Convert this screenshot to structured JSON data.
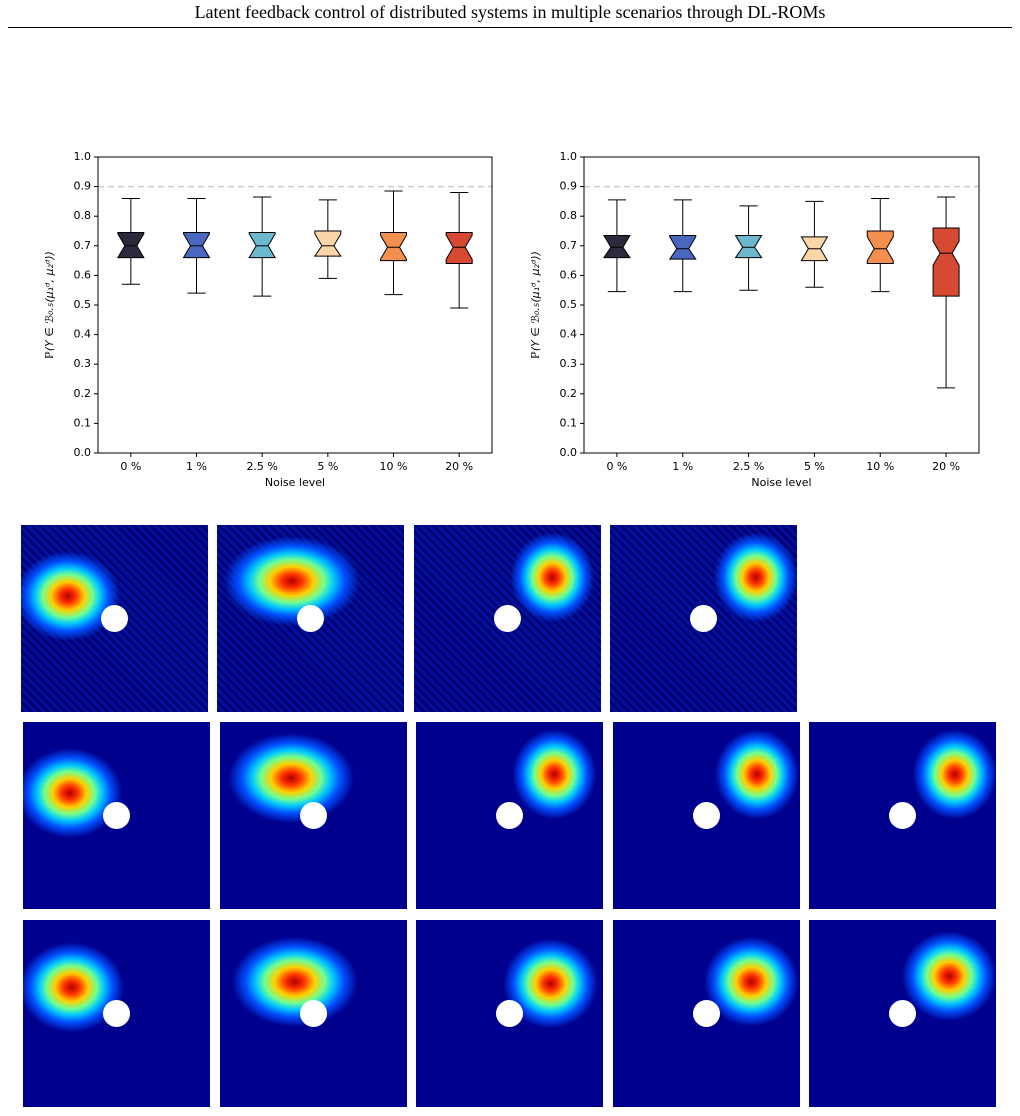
{
  "header": {
    "title": "Latent feedback control of distributed systems in multiple scenarios through DL-ROMs"
  },
  "chart_data": [
    {
      "type": "box",
      "ylabel": "ℙ(Y ∈ ℬ₀.₅(μ₁ᵈ, μ₂ᵈ))",
      "xlabel": "Noise level",
      "categories": [
        "0 %",
        "1 %",
        "2.5 %",
        "5 %",
        "10 %",
        "20 %"
      ],
      "ylim": [
        0,
        1
      ],
      "yticks": [
        {
          "value": 0,
          "label": "0.0"
        },
        0.1,
        0.2,
        0.3,
        0.4,
        0.5,
        0.6,
        0.7,
        0.8,
        0.9,
        {
          "value": 1,
          "label": "1.0"
        }
      ],
      "reference_line": 0.9,
      "boxes": [
        {
          "color": "#2b2b3d",
          "whislo": 0.57,
          "q1": 0.66,
          "med": 0.7,
          "q3": 0.745,
          "whishi": 0.86
        },
        {
          "color": "#4a67c0",
          "whislo": 0.54,
          "q1": 0.66,
          "med": 0.7,
          "q3": 0.745,
          "whishi": 0.86
        },
        {
          "color": "#6cb8cf",
          "whislo": 0.53,
          "q1": 0.66,
          "med": 0.7,
          "q3": 0.745,
          "whishi": 0.865
        },
        {
          "color": "#fcd5a8",
          "whislo": 0.59,
          "q1": 0.665,
          "med": 0.7,
          "q3": 0.75,
          "whishi": 0.855
        },
        {
          "color": "#f39050",
          "whislo": 0.535,
          "q1": 0.65,
          "med": 0.695,
          "q3": 0.745,
          "whishi": 0.885
        },
        {
          "color": "#d64a33",
          "whislo": 0.49,
          "q1": 0.64,
          "med": 0.695,
          "q3": 0.745,
          "whishi": 0.88
        }
      ]
    },
    {
      "type": "box",
      "ylabel": "ℙ(Y ∈ ℬ₀.₅(μ₁ᵈ, μ₂ᵈ))",
      "xlabel": "Noise level",
      "categories": [
        "0 %",
        "1 %",
        "2.5 %",
        "5 %",
        "10 %",
        "20 %"
      ],
      "ylim": [
        0,
        1
      ],
      "yticks": [
        {
          "value": 0,
          "label": "0.0"
        },
        0.1,
        0.2,
        0.3,
        0.4,
        0.5,
        0.6,
        0.7,
        0.8,
        0.9,
        {
          "value": 1,
          "label": "1.0"
        }
      ],
      "reference_line": 0.9,
      "boxes": [
        {
          "color": "#2b2b3d",
          "whislo": 0.545,
          "q1": 0.66,
          "med": 0.695,
          "q3": 0.735,
          "whishi": 0.855
        },
        {
          "color": "#4a67c0",
          "whislo": 0.545,
          "q1": 0.655,
          "med": 0.69,
          "q3": 0.735,
          "whishi": 0.855
        },
        {
          "color": "#6cb8cf",
          "whislo": 0.55,
          "q1": 0.66,
          "med": 0.695,
          "q3": 0.735,
          "whishi": 0.835
        },
        {
          "color": "#fcd5a8",
          "whislo": 0.56,
          "q1": 0.65,
          "med": 0.69,
          "q3": 0.73,
          "whishi": 0.85
        },
        {
          "color": "#f39050",
          "whislo": 0.545,
          "q1": 0.64,
          "med": 0.69,
          "q3": 0.75,
          "whishi": 0.86
        },
        {
          "color": "#d64a33",
          "whislo": 0.22,
          "q1": 0.53,
          "med": 0.675,
          "q3": 0.76,
          "whishi": 0.865
        }
      ]
    }
  ]
}
